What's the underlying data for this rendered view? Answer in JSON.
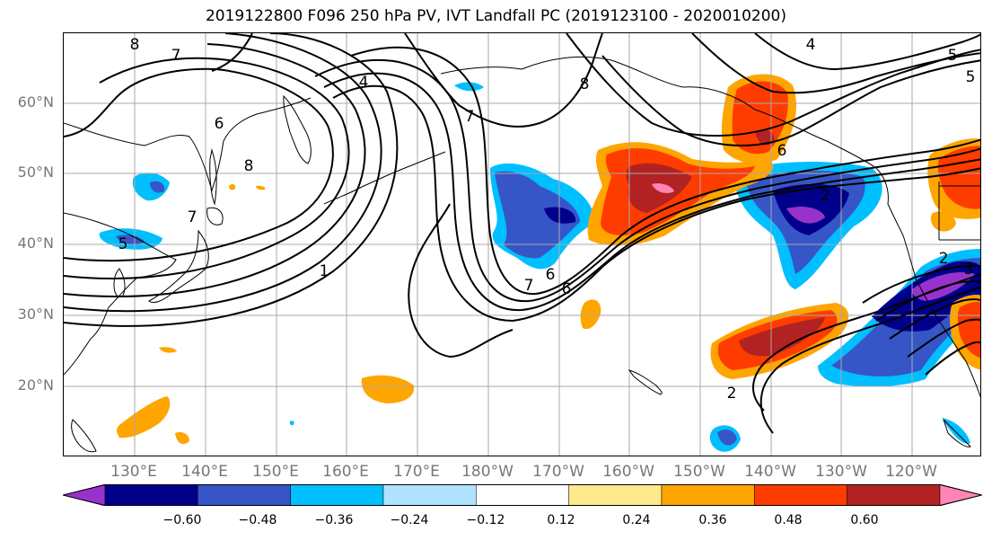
{
  "title": "2019122800 F096 250 hPa PV, IVT Landfall PC (2019123100 - 2020010200)",
  "lat_labels": [
    "60°N",
    "50°N",
    "40°N",
    "30°N",
    "20°N"
  ],
  "lon_labels": [
    "130°E",
    "140°E",
    "150°E",
    "160°E",
    "170°E",
    "180°W",
    "170°W",
    "160°W",
    "150°W",
    "140°W",
    "130°W",
    "120°W"
  ],
  "colorbar": {
    "colors": [
      "#9932cc",
      "#00008b",
      "#3656c8",
      "#00bfff",
      "#b0e2ff",
      "#ffffff",
      "#ffe98a",
      "#ffa500",
      "#ff3c00",
      "#b22222",
      "#ff86b4"
    ],
    "tick_labels": [
      "−0.60",
      "−0.48",
      "−0.36",
      "−0.24",
      "−0.12",
      "0.12",
      "0.24",
      "0.36",
      "0.48",
      "0.60"
    ]
  },
  "pv_contour_labels": [
    "8",
    "7",
    "6",
    "8",
    "7",
    "5",
    "4",
    "1",
    "7",
    "6",
    "8",
    "6",
    "7",
    "6",
    "5",
    "2",
    "2",
    "2",
    "3",
    "4",
    "5"
  ]
}
